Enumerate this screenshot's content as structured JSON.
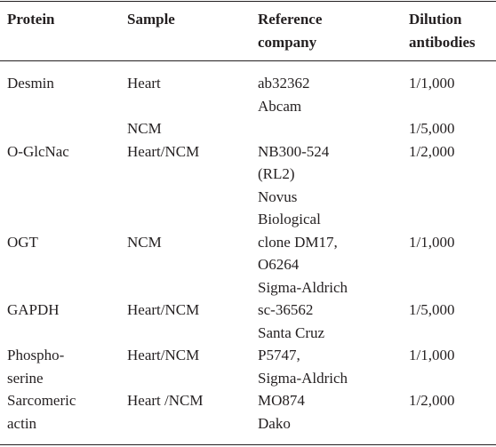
{
  "table": {
    "header": [
      [
        "Protein"
      ],
      [
        "Sample"
      ],
      [
        "Reference",
        "company"
      ],
      [
        "Dilution",
        "antibodies"
      ]
    ],
    "rows": [
      [
        [
          "Desmin"
        ],
        [
          "Heart"
        ],
        [
          "ab32362",
          "Abcam"
        ],
        [
          "1/1,000"
        ]
      ],
      [
        [],
        [
          "NCM"
        ],
        [],
        [
          "1/5,000"
        ]
      ],
      [
        [
          "O-GlcNac"
        ],
        [
          "Heart/NCM"
        ],
        [
          "NB300-524",
          "(RL2)",
          "Novus",
          "Biological"
        ],
        [
          "1/2,000"
        ]
      ],
      [
        [
          "OGT"
        ],
        [
          "NCM"
        ],
        [
          "clone DM17,",
          "O6264",
          "Sigma-Aldrich"
        ],
        [
          "1/1,000"
        ]
      ],
      [
        [
          "GAPDH"
        ],
        [
          "Heart/NCM"
        ],
        [
          "sc-36562",
          "Santa Cruz"
        ],
        [
          "1/5,000"
        ]
      ],
      [
        [
          "Phospho-",
          "serine"
        ],
        [
          "Heart/NCM"
        ],
        [
          "P5747,",
          "Sigma-Aldrich"
        ],
        [
          "1/1,000"
        ]
      ],
      [
        [
          "Sarcomeric",
          "actin"
        ],
        [
          "Heart /NCM"
        ],
        [
          "MO874",
          "Dako"
        ],
        [
          "1/2,000"
        ]
      ]
    ]
  }
}
